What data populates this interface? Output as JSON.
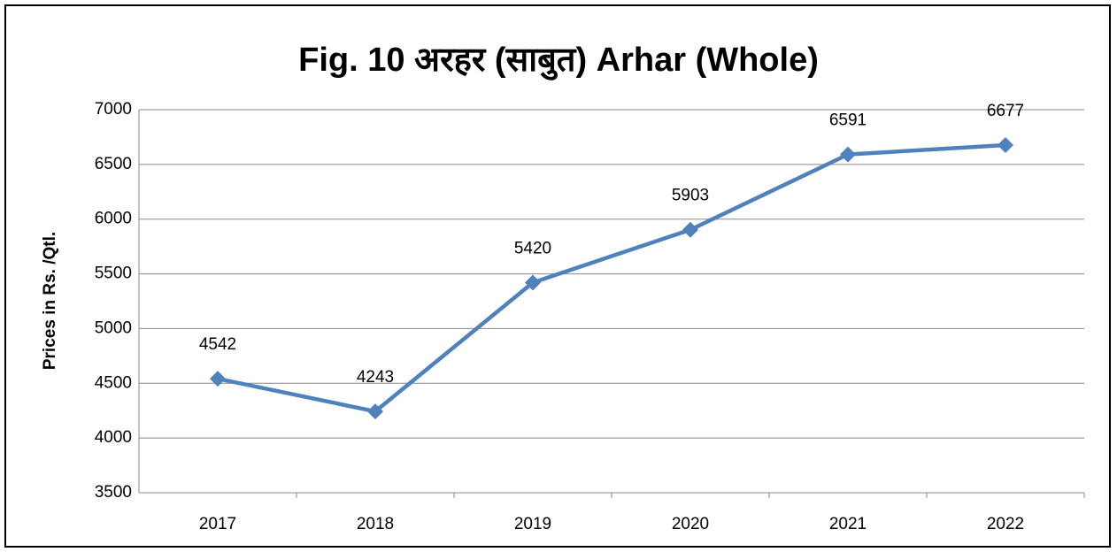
{
  "chart_data": {
    "type": "line",
    "title": "Fig. 10 अरहर (साबुत) Arhar (Whole)",
    "y_label": "Prices in Rs. /Qtl.",
    "categories": [
      "2017",
      "2018",
      "2019",
      "2020",
      "2021",
      "2022"
    ],
    "series": [
      {
        "name": "Arhar (Whole)",
        "color": "#4f81bd",
        "values": [
          4542,
          4243,
          5420,
          5903,
          6591,
          6677
        ]
      }
    ],
    "ylim": [
      3500,
      7000
    ],
    "yticks": [
      3500,
      4000,
      4500,
      5000,
      5500,
      6000,
      6500,
      7000
    ],
    "grid": true,
    "data_labels": true
  }
}
